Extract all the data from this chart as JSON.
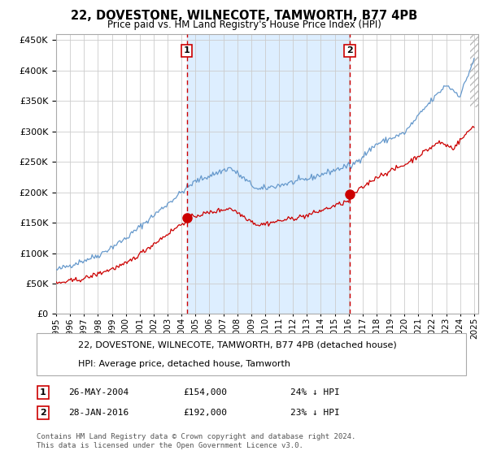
{
  "title": "22, DOVESTONE, WILNECOTE, TAMWORTH, B77 4PB",
  "subtitle": "Price paid vs. HM Land Registry's House Price Index (HPI)",
  "legend_line1": "22, DOVESTONE, WILNECOTE, TAMWORTH, B77 4PB (detached house)",
  "legend_line2": "HPI: Average price, detached house, Tamworth",
  "marker1_date": "26-MAY-2004",
  "marker1_price": "£154,000",
  "marker1_pct": "24% ↓ HPI",
  "marker2_date": "28-JAN-2016",
  "marker2_price": "£192,000",
  "marker2_pct": "23% ↓ HPI",
  "footnote": "Contains HM Land Registry data © Crown copyright and database right 2024.\nThis data is licensed under the Open Government Licence v3.0.",
  "hpi_color": "#6699cc",
  "price_color": "#cc0000",
  "vline_color": "#cc0000",
  "shade_color": "#ddeeff",
  "bg_color": "#ffffff",
  "grid_color": "#cccccc",
  "ylim": [
    0,
    460000
  ],
  "yticks": [
    0,
    50000,
    100000,
    150000,
    200000,
    250000,
    300000,
    350000,
    400000,
    450000
  ],
  "year_start": 1995,
  "year_end": 2025,
  "marker1_year": 2004.38,
  "marker2_year": 2016.08
}
